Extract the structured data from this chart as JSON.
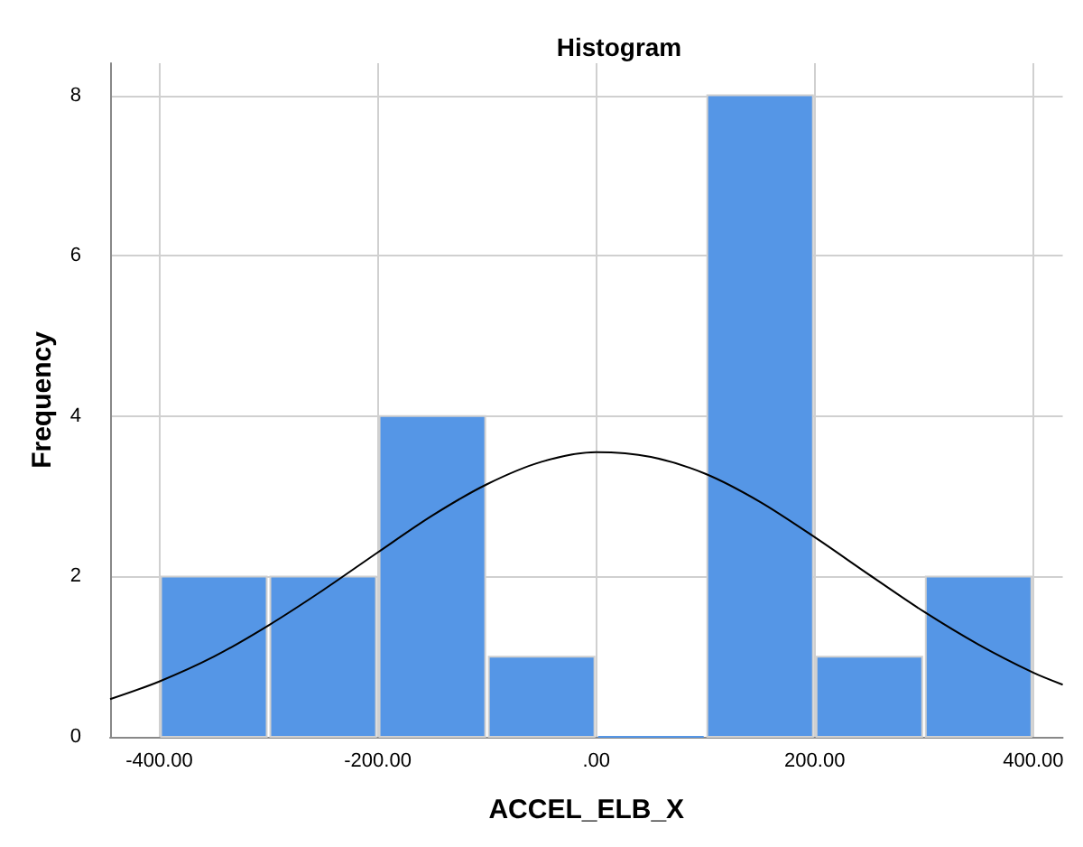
{
  "chart_data": {
    "type": "histogram",
    "title": "Histogram",
    "xlabel": "ACCEL_ELB_X",
    "ylabel": "Frequency",
    "bins": [
      -400,
      -300,
      -200,
      -100,
      0,
      100,
      200,
      300,
      400
    ],
    "values": [
      2,
      2,
      4,
      1,
      0,
      8,
      1,
      2
    ],
    "color": "#5596e6",
    "series": [
      {
        "type": "line",
        "color": "#000000",
        "x": [
          -445,
          -400,
          -350,
          -300,
          -250,
          -200,
          -150,
          -100,
          -50,
          0,
          50,
          100,
          150,
          200,
          250,
          300,
          350,
          400,
          427
        ],
        "values": [
          0.47,
          0.69,
          1.0,
          1.39,
          1.83,
          2.3,
          2.76,
          3.15,
          3.43,
          3.55,
          3.49,
          3.28,
          2.93,
          2.49,
          2.02,
          1.56,
          1.15,
          0.8,
          0.65
        ]
      }
    ],
    "xlim": [
      -445,
      427
    ],
    "ylim": [
      0,
      8.4
    ],
    "xticks": [
      {
        "value": -400,
        "label": "-400.00"
      },
      {
        "value": -200,
        "label": "-200.00"
      },
      {
        "value": 0,
        "label": ".00"
      },
      {
        "value": 200,
        "label": "200.00"
      },
      {
        "value": 400,
        "label": "400.00"
      }
    ],
    "yticks": [
      0,
      2,
      4,
      6,
      8
    ],
    "grid": true,
    "marker": "none"
  }
}
